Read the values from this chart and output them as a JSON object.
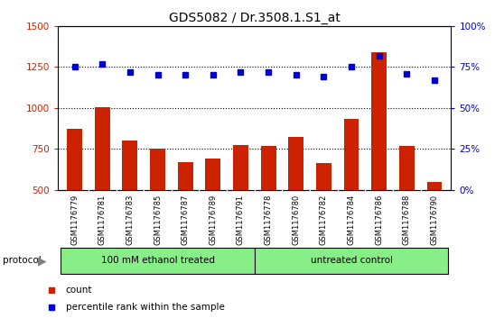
{
  "title": "GDS5082 / Dr.3508.1.S1_at",
  "samples": [
    "GSM1176779",
    "GSM1176781",
    "GSM1176783",
    "GSM1176785",
    "GSM1176787",
    "GSM1176789",
    "GSM1176791",
    "GSM1176778",
    "GSM1176780",
    "GSM1176782",
    "GSM1176784",
    "GSM1176786",
    "GSM1176788",
    "GSM1176790"
  ],
  "counts": [
    870,
    1005,
    800,
    750,
    670,
    690,
    775,
    770,
    825,
    665,
    930,
    1340,
    765,
    545
  ],
  "percentiles": [
    75,
    77,
    72,
    70,
    70,
    70,
    72,
    72,
    70,
    69,
    75,
    82,
    71,
    67
  ],
  "group1_label": "100 mM ethanol treated",
  "group2_label": "untreated control",
  "group1_count": 7,
  "group2_count": 7,
  "ylim_left": [
    500,
    1500
  ],
  "ylim_right": [
    0,
    100
  ],
  "yticks_left": [
    500,
    750,
    1000,
    1250,
    1500
  ],
  "yticks_right": [
    0,
    25,
    50,
    75,
    100
  ],
  "ytick_labels_right": [
    "0%",
    "25%",
    "50%",
    "75%",
    "100%"
  ],
  "bar_color": "#cc2200",
  "dot_color": "#0000cc",
  "bg_color": "#ffffff",
  "tick_area_color": "#cccccc",
  "group_color": "#88ee88",
  "legend_count_label": "count",
  "legend_pct_label": "percentile rank within the sample",
  "title_fontsize": 10,
  "bar_bottom": 500,
  "bar_width": 0.55
}
